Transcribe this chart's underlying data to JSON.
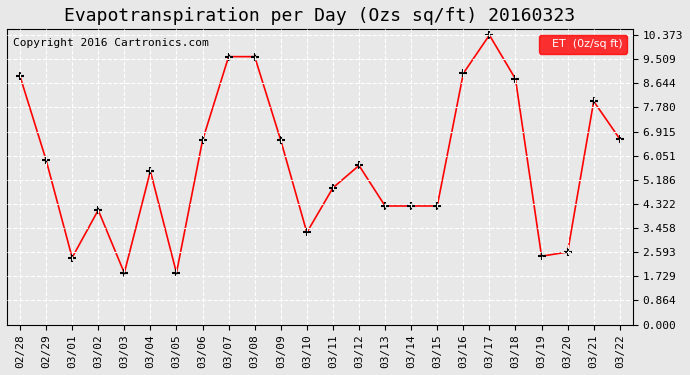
{
  "title": "Evapotranspiration per Day (Ozs sq/ft) 20160323",
  "copyright": "Copyright 2016 Cartronics.com",
  "legend_label": "ET  (0z/sq ft)",
  "dates": [
    "02/28",
    "02/29",
    "03/01",
    "03/02",
    "03/03",
    "03/04",
    "03/05",
    "03/06",
    "03/07",
    "03/08",
    "03/09",
    "03/10",
    "03/11",
    "03/12",
    "03/13",
    "03/14",
    "03/15",
    "03/16",
    "03/17",
    "03/18",
    "03/19",
    "03/20",
    "03/21",
    "03/22"
  ],
  "values": [
    8.9,
    5.9,
    2.4,
    4.1,
    1.85,
    5.5,
    1.85,
    6.6,
    9.6,
    9.6,
    6.6,
    3.3,
    4.9,
    5.7,
    4.25,
    4.25,
    4.25,
    9.0,
    10.373,
    8.8,
    2.45,
    2.6,
    8.0,
    6.65
  ],
  "yticks": [
    0.0,
    0.864,
    1.729,
    2.593,
    3.458,
    4.322,
    5.186,
    6.051,
    6.915,
    7.78,
    8.644,
    9.509,
    10.373
  ],
  "ymin": 0.0,
  "ymax": 10.373,
  "line_color": "red",
  "marker": "+",
  "marker_color": "black",
  "background_color": "#e8e8e8",
  "grid_color": "white",
  "title_fontsize": 13,
  "copyright_fontsize": 8,
  "tick_fontsize": 8
}
